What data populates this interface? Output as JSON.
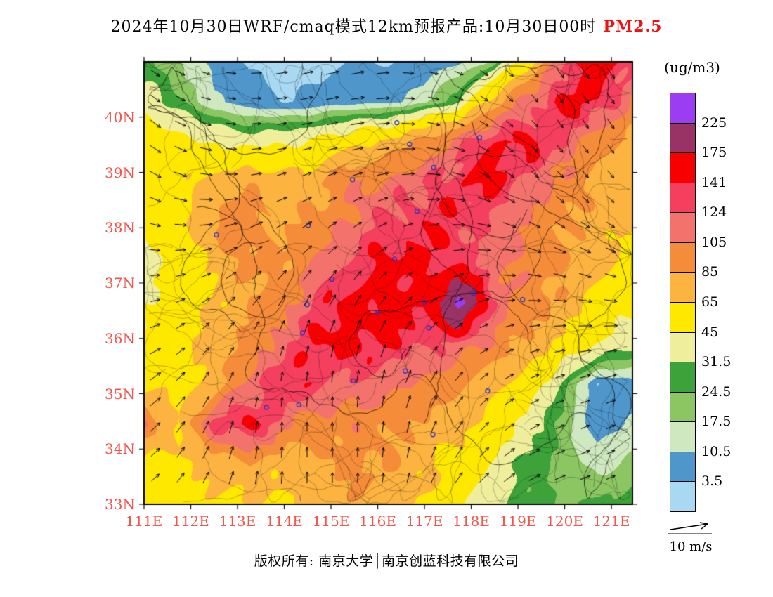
{
  "title": {
    "main": "2024年10月30日WRF/cmaq模式12km预报产品:10月30日00时",
    "pollutant": "PM2.5",
    "pollutant_color": "#ee1111"
  },
  "axes": {
    "x_tick_labels": [
      "111E",
      "112E",
      "113E",
      "114E",
      "115E",
      "116E",
      "117E",
      "118E",
      "119E",
      "120E",
      "121E"
    ],
    "y_tick_labels": [
      "40N",
      "39N",
      "38N",
      "37N",
      "36N",
      "35N",
      "34N",
      "33N"
    ],
    "tick_label_color": "#f4554a"
  },
  "colorbar": {
    "unit_label": "(ug/m3)",
    "tick_labels": [
      "225",
      "175",
      "141",
      "124",
      "105",
      "85",
      "65",
      "45",
      "31.5",
      "24.5",
      "17.5",
      "10.5",
      "3.5"
    ],
    "colors_top_to_bottom": [
      "#9b3df2",
      "#993366",
      "#f80002",
      "#f43f5e",
      "#f3736c",
      "#f58c3a",
      "#fcb340",
      "#ffe800",
      "#efee9d",
      "#3da23a",
      "#8cc663",
      "#cfe8c0",
      "#4f96ca",
      "#a9d9f2"
    ]
  },
  "wind_legend": {
    "label": "10 m/s"
  },
  "footer": {
    "text": "版权所有: 南京大学│南京创蓝科技有限公司"
  },
  "chart_data": {
    "type": "heatmap",
    "variable": "PM2.5",
    "unit": "ug/m3",
    "lon_range": [
      111,
      121.45
    ],
    "lat_range": [
      33,
      41
    ],
    "levels": [
      3.5,
      10.5,
      17.5,
      24.5,
      31.5,
      45,
      65,
      85,
      105,
      124,
      141,
      175,
      225
    ],
    "level_colors_low_to_high": [
      "#a9d9f2",
      "#4f96ca",
      "#cfe8c0",
      "#8cc663",
      "#3da23a",
      "#efee9d",
      "#ffe800",
      "#fcb340",
      "#f58c3a",
      "#f3736c",
      "#f43f5e",
      "#f80002",
      "#993366",
      "#9b3df2"
    ],
    "grid_values_north_to_south": [
      [
        26,
        18,
        8,
        3,
        2,
        2,
        4,
        3,
        6,
        9,
        18,
        55,
        120,
        155,
        135
      ],
      [
        38,
        26,
        12,
        6,
        3,
        5,
        8,
        9,
        15,
        30,
        75,
        115,
        150,
        140,
        105
      ],
      [
        55,
        50,
        45,
        40,
        42,
        50,
        60,
        70,
        90,
        115,
        140,
        150,
        120,
        90,
        80
      ],
      [
        50,
        60,
        70,
        80,
        70,
        80,
        100,
        110,
        120,
        140,
        145,
        120,
        100,
        80,
        70
      ],
      [
        45,
        55,
        90,
        100,
        80,
        90,
        110,
        130,
        140,
        135,
        120,
        100,
        90,
        75,
        65
      ],
      [
        40,
        50,
        70,
        90,
        85,
        110,
        130,
        150,
        145,
        130,
        115,
        100,
        85,
        70,
        55
      ],
      [
        45,
        55,
        65,
        80,
        100,
        130,
        150,
        155,
        140,
        240,
        120,
        95,
        80,
        60,
        50
      ],
      [
        50,
        60,
        70,
        90,
        120,
        145,
        150,
        140,
        130,
        120,
        100,
        80,
        60,
        45,
        35
      ],
      [
        55,
        60,
        70,
        110,
        140,
        130,
        120,
        110,
        100,
        90,
        75,
        55,
        30,
        3,
        8
      ],
      [
        110,
        60,
        130,
        150,
        110,
        90,
        100,
        90,
        80,
        70,
        60,
        40,
        20,
        6,
        12
      ],
      [
        55,
        60,
        70,
        80,
        70,
        80,
        90,
        85,
        70,
        55,
        40,
        28,
        22,
        15,
        20
      ],
      [
        50,
        55,
        60,
        65,
        60,
        70,
        80,
        75,
        65,
        50,
        35,
        26,
        24,
        26,
        30
      ]
    ],
    "station_markers_lon_lat": [
      [
        116.41,
        39.9
      ],
      [
        117.2,
        39.09
      ],
      [
        118.18,
        39.63
      ],
      [
        116.68,
        39.51
      ],
      [
        115.46,
        38.87
      ],
      [
        114.51,
        38.04
      ],
      [
        112.55,
        37.87
      ],
      [
        116.84,
        38.3
      ],
      [
        116.36,
        37.43
      ],
      [
        115.02,
        37.07
      ],
      [
        114.49,
        36.61
      ],
      [
        114.39,
        36.1
      ],
      [
        116.0,
        36.46
      ],
      [
        117.0,
        36.65
      ],
      [
        118.05,
        36.81
      ],
      [
        117.09,
        36.19
      ],
      [
        116.59,
        35.41
      ],
      [
        115.48,
        35.23
      ],
      [
        113.62,
        34.75
      ],
      [
        114.31,
        34.8
      ],
      [
        117.18,
        34.26
      ],
      [
        118.35,
        35.05
      ],
      [
        119.1,
        36.7
      ]
    ],
    "station_marker_color": "#2233cc",
    "wind_reference_mps": 10
  }
}
